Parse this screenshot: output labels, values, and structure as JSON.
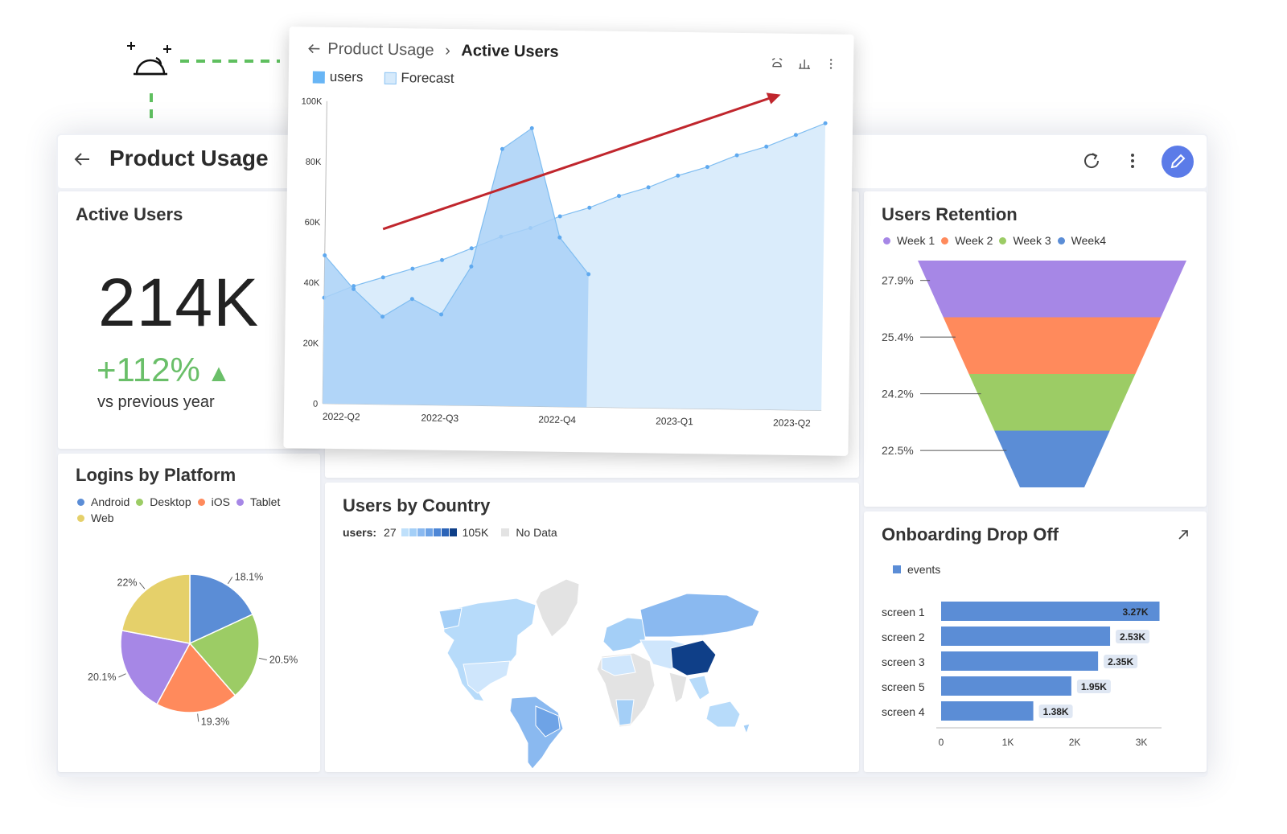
{
  "header": {
    "title": "Product Usage"
  },
  "active_users": {
    "title": "Active Users",
    "value": "214K",
    "change": "+112%",
    "change_caption": "vs previous year"
  },
  "popup": {
    "breadcrumb_parent": "Product Usage",
    "breadcrumb_current": "Active Users",
    "legend_users": "users",
    "legend_forecast": "Forecast"
  },
  "retention": {
    "title": "Users Retention",
    "legend": [
      {
        "label": "Week 1",
        "color": "#a687e6"
      },
      {
        "label": "Week 2",
        "color": "#ff8a5c"
      },
      {
        "label": "Week 3",
        "color": "#9ccc65"
      },
      {
        "label": "Week4",
        "color": "#5b8dd6"
      }
    ]
  },
  "logins": {
    "title": "Logins by Platform",
    "legend": [
      {
        "label": "Android",
        "color": "#5b8dd6"
      },
      {
        "label": "Desktop",
        "color": "#9ccc65"
      },
      {
        "label": "iOS",
        "color": "#ff8a5c"
      },
      {
        "label": "Tablet",
        "color": "#a687e6"
      },
      {
        "label": "Web",
        "color": "#e5d06a"
      }
    ]
  },
  "country": {
    "title": "Users by Country",
    "legend_label": "users:",
    "min": "27",
    "max": "105K",
    "no_data": "No Data",
    "gradient": [
      "#bfe0fb",
      "#a4cff7",
      "#8ab9f0",
      "#6ea3e6",
      "#4d86d6",
      "#2c64b8",
      "#0f3f88"
    ]
  },
  "onboarding": {
    "title": "Onboarding Drop Off",
    "legend": "events"
  },
  "chart_data": [
    {
      "type": "area",
      "title": "Active Users",
      "x": [
        "2022-Q2",
        "2022-Q3",
        "2022-Q4",
        "2023-Q1",
        "2023-Q2"
      ],
      "ylim": [
        0,
        100000
      ],
      "yticks": [
        "0",
        "20K",
        "40K",
        "60K",
        "80K",
        "100K"
      ],
      "grid": false,
      "series": [
        {
          "name": "users",
          "color": "#a9d1f7",
          "points": [
            [
              0,
              49000
            ],
            [
              0.25,
              38000
            ],
            [
              0.5,
              29000
            ],
            [
              0.75,
              35000
            ],
            [
              1.0,
              30000
            ],
            [
              1.25,
              46000
            ],
            [
              1.5,
              85000
            ],
            [
              1.75,
              92000
            ],
            [
              2.0,
              56000
            ],
            [
              2.25,
              44000
            ]
          ]
        },
        {
          "name": "Forecast",
          "color": "#d6eafb",
          "points": [
            [
              0,
              35000
            ],
            [
              0.25,
              39000
            ],
            [
              0.5,
              42000
            ],
            [
              0.75,
              45000
            ],
            [
              1.0,
              48000
            ],
            [
              1.25,
              52000
            ],
            [
              1.5,
              56000
            ],
            [
              1.75,
              59000
            ],
            [
              2.0,
              63000
            ],
            [
              2.25,
              66000
            ],
            [
              2.5,
              70000
            ],
            [
              2.75,
              73000
            ],
            [
              3.0,
              77000
            ],
            [
              3.25,
              80000
            ],
            [
              3.5,
              84000
            ],
            [
              3.75,
              87000
            ],
            [
              4.0,
              91000
            ],
            [
              4.25,
              95000
            ]
          ]
        }
      ]
    },
    {
      "type": "funnel",
      "title": "Users Retention",
      "categories": [
        "Week 1",
        "Week 2",
        "Week 3",
        "Week4"
      ],
      "values": [
        27.9,
        25.4,
        24.2,
        22.5
      ],
      "labels": [
        "27.9%",
        "25.4%",
        "24.2%",
        "22.5%"
      ],
      "colors": [
        "#a687e6",
        "#ff8a5c",
        "#9ccc65",
        "#5b8dd6"
      ]
    },
    {
      "type": "pie",
      "title": "Logins by Platform",
      "categories": [
        "Android",
        "Desktop",
        "iOS",
        "Tablet",
        "Web"
      ],
      "values": [
        18.1,
        20.5,
        19.3,
        20.1,
        22
      ],
      "labels": [
        "18.1%",
        "20.5%",
        "19.3%",
        "20.1%",
        "22%"
      ],
      "colors": [
        "#5b8dd6",
        "#9ccc65",
        "#ff8a5c",
        "#a687e6",
        "#e5d06a"
      ]
    },
    {
      "type": "bar",
      "title": "Onboarding Drop Off",
      "orientation": "horizontal",
      "categories": [
        "screen 1",
        "screen 2",
        "screen 3",
        "screen 5",
        "screen 4"
      ],
      "values": [
        3270,
        2530,
        2350,
        1950,
        1380
      ],
      "labels": [
        "3.27K",
        "2.53K",
        "2.35K",
        "1.95K",
        "1.38K"
      ],
      "xlim": [
        0,
        3300
      ],
      "xticks": [
        "0",
        "1K",
        "2K",
        "3K"
      ],
      "color": "#5b8dd6"
    }
  ]
}
